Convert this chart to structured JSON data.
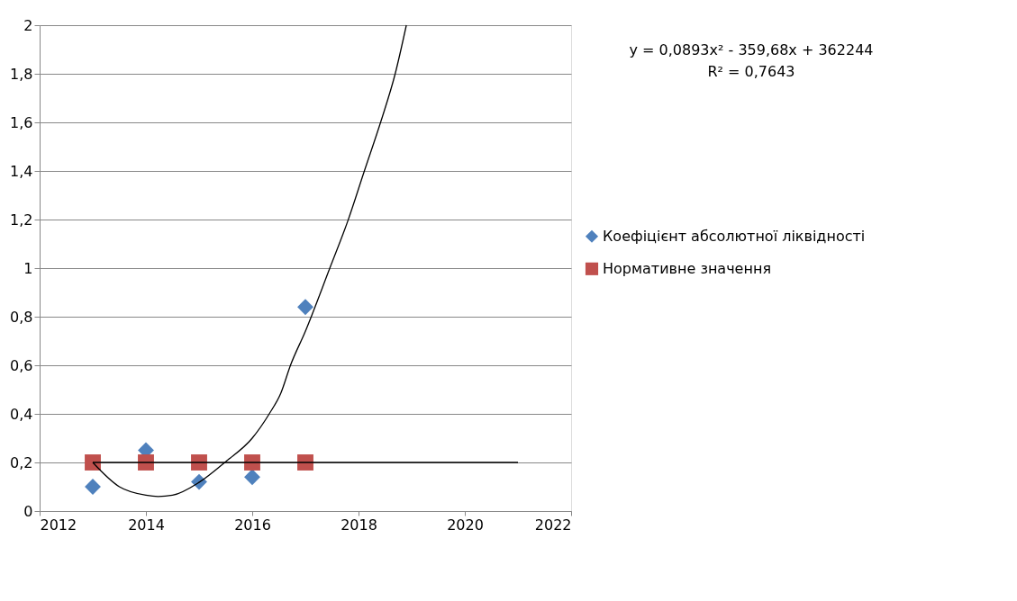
{
  "chart_data": {
    "type": "scatter",
    "annotations": [
      "y = 0,0893x² - 359,68x + 362244",
      "R² = 0,7643"
    ],
    "series": [
      {
        "name": "Коефіцієнт абсолютної ліквідності",
        "color": "#4f81bd",
        "marker": "diamond",
        "x": [
          2013,
          2014,
          2015,
          2016,
          2017
        ],
        "values": [
          0.1,
          0.25,
          0.12,
          0.14,
          0.84
        ]
      },
      {
        "name": "Нормативне значення",
        "color": "#c0504d",
        "marker": "square",
        "x": [
          2013,
          2014,
          2015,
          2016,
          2017
        ],
        "values": [
          0.2,
          0.2,
          0.2,
          0.2,
          0.2
        ]
      },
      {
        "type": "line",
        "color": "#000000",
        "marker": "none",
        "x": [
          2013,
          2013.5,
          2014,
          2014.23,
          2014.5,
          2015,
          2015.51,
          2016,
          2016.32,
          2016.54,
          2016.72,
          2017,
          2017.46,
          2017.8,
          2018.11,
          2018.43,
          2018.69,
          2018.9
        ],
        "values": [
          0.2,
          0.1,
          0.065,
          0.06,
          0.065,
          0.118,
          0.205,
          0.3,
          0.4,
          0.486,
          0.6,
          0.74,
          1.0,
          1.195,
          1.4,
          1.61,
          1.8,
          2.0
        ]
      },
      {
        "type": "line",
        "color": "#000000",
        "marker": "none",
        "x": [
          2013,
          2021
        ],
        "values": [
          0.2,
          0.2
        ]
      }
    ],
    "xlim": [
      2012,
      2022
    ],
    "xticks": [
      2012,
      2014,
      2016,
      2018,
      2020,
      2022
    ],
    "ylim": [
      0,
      2
    ],
    "yticks": [
      0,
      {
        "value": 0.2,
        "label": "0,2"
      },
      {
        "value": 0.4,
        "label": "0,4"
      },
      {
        "value": 0.6,
        "label": "0,6"
      },
      {
        "value": 0.8,
        "label": "0,8"
      },
      1,
      {
        "value": 1.2,
        "label": "1,2"
      },
      {
        "value": 1.4,
        "label": "1,4"
      },
      {
        "value": 1.6,
        "label": "1,6"
      },
      {
        "value": 1.8,
        "label": "1,8"
      },
      2
    ],
    "grid": "y",
    "legend": "right"
  }
}
